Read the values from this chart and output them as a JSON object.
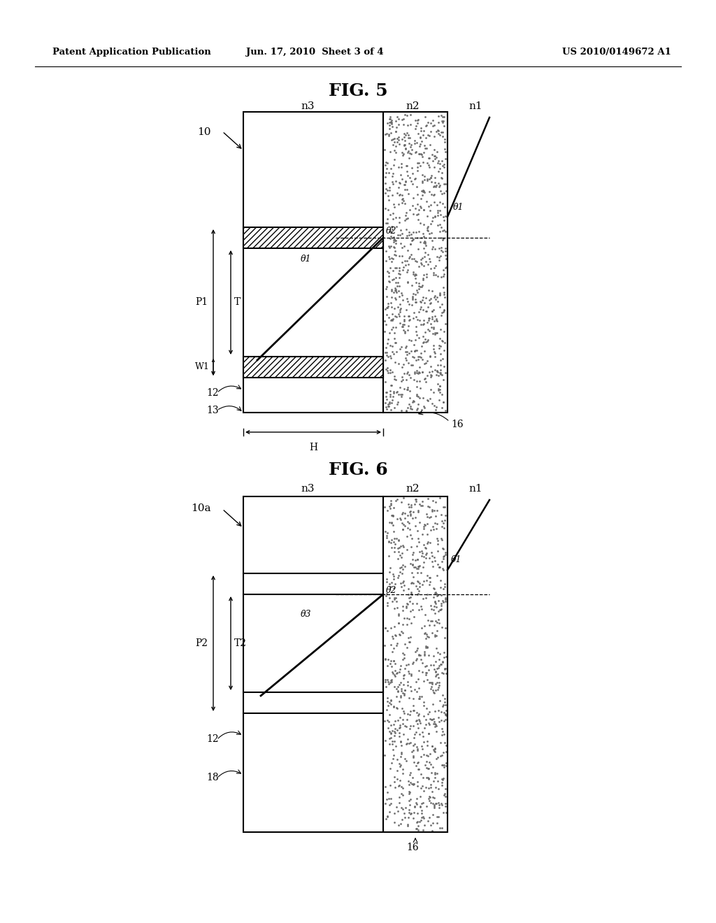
{
  "header_left": "Patent Application Publication",
  "header_mid": "Jun. 17, 2010  Sheet 3 of 4",
  "header_right": "US 2010/0149672 A1",
  "fig5_title": "FIG. 5",
  "fig6_title": "FIG. 6",
  "bg_color": "#ffffff",
  "line_color": "#000000",
  "fig5": {
    "label_10": "10",
    "label_n3": "n3",
    "label_n2": "n2",
    "label_n1": "n1",
    "label_P1": "P1",
    "label_T": "T",
    "label_W1": "W1",
    "label_H": "H",
    "label_12": "12",
    "label_13": "13",
    "label_16": "16",
    "label_theta1_upper": "θ1",
    "label_theta2": "θ2",
    "label_theta1_lower": "θ1"
  },
  "fig6": {
    "label_10a": "10a",
    "label_n3": "n3",
    "label_n2": "n2",
    "label_n1": "n1",
    "label_P2": "P2",
    "label_T2": "T2",
    "label_12": "12",
    "label_18": "18",
    "label_16": "16",
    "label_theta1": "θ1",
    "label_theta2": "θ2",
    "label_theta3": "θ3"
  }
}
